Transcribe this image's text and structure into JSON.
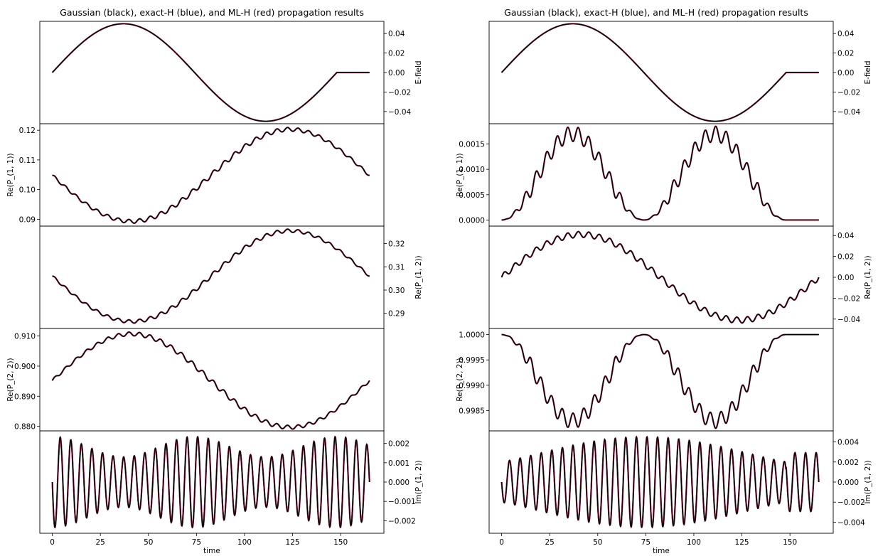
{
  "colors": {
    "gaussian": "#000000",
    "exact": "#1f3fbf",
    "ml": "#d62728",
    "axes": "#000000"
  },
  "chart_data": [
    {
      "type": "line",
      "title": "Gaussian (black), exact-H (blue), and ML-H (red) propagation results",
      "xlabel": "time",
      "xlim": [
        -6.5,
        172.5
      ],
      "xticks": [
        0,
        25,
        50,
        75,
        100,
        125,
        150
      ],
      "panels": [
        {
          "ylabel": "E-field",
          "ylabel_side": "right",
          "ylim": [
            -0.0525,
            0.0525
          ],
          "yticks": [
            0.04,
            0.02,
            0.0,
            -0.02,
            -0.04
          ],
          "tick_labels": [
            "0.04",
            "0.02",
            "0.00",
            "−0.02",
            "−0.04"
          ],
          "kind": "efield",
          "amplitude": 0.05,
          "pulse_end": 148,
          "t_end": 165
        },
        {
          "ylabel": "Re(P_(1, 1))",
          "ylabel_side": "left",
          "ylim": [
            0.0877,
            0.1222
          ],
          "yticks": [
            0.12,
            0.11,
            0.1,
            0.09
          ],
          "tick_labels": [
            "0.12",
            "0.11",
            "0.10",
            "0.09"
          ],
          "kind": "slow",
          "offset": 0.1048,
          "amplitude": -0.0155,
          "ripple": 0.0008,
          "ripple_period": 5.5,
          "t_end": 165
        },
        {
          "ylabel": "Re(P_(1, 2))",
          "ylabel_side": "right",
          "ylim": [
            0.2835,
            0.3275
          ],
          "yticks": [
            0.32,
            0.31,
            0.3,
            0.29
          ],
          "tick_labels": [
            "0.32",
            "0.31",
            "0.30",
            "0.29"
          ],
          "kind": "slow",
          "offset": 0.306,
          "amplitude": -0.0195,
          "ripple": 0.0009,
          "ripple_period": 5.5,
          "t_end": 165
        },
        {
          "ylabel": "Re(P_(2, 2))",
          "ylabel_side": "left",
          "ylim": [
            0.8785,
            0.9125
          ],
          "yticks": [
            0.91,
            0.9,
            0.89,
            0.88
          ],
          "tick_labels": [
            "0.910",
            "0.900",
            "0.890",
            "0.880"
          ],
          "kind": "slow",
          "offset": 0.8952,
          "amplitude": 0.0155,
          "ripple": 0.0008,
          "ripple_period": 5.5,
          "t_end": 165
        },
        {
          "ylabel": "Im(P_(1, 2))",
          "ylabel_side": "right",
          "ylim": [
            -0.00265,
            0.00265
          ],
          "yticks": [
            0.002,
            0.001,
            0.0,
            -0.001,
            -0.002
          ],
          "tick_labels": [
            "0.002",
            "0.001",
            "0.000",
            "−0.001",
            "−0.002"
          ],
          "kind": "osc",
          "envelope": "left",
          "period": 5.5,
          "amp_edge": 0.00235,
          "amp_mid": 0.0013,
          "t_end": 165
        }
      ]
    },
    {
      "type": "line",
      "title": "Gaussian (black), exact-H (blue), and ML-H (red) propagation results",
      "xlabel": "time",
      "xlim": [
        -6.5,
        172.5
      ],
      "xticks": [
        0,
        25,
        50,
        75,
        100,
        125,
        150
      ],
      "panels": [
        {
          "ylabel": "E-field",
          "ylabel_side": "right",
          "ylim": [
            -0.0525,
            0.0525
          ],
          "yticks": [
            0.04,
            0.02,
            0.0,
            -0.02,
            -0.04
          ],
          "tick_labels": [
            "0.04",
            "0.02",
            "0.00",
            "−0.02",
            "−0.04"
          ],
          "kind": "efield",
          "amplitude": 0.05,
          "pulse_end": 148,
          "t_end": 165
        },
        {
          "ylabel": "Re(P_(1, 1))",
          "ylabel_side": "left",
          "ylim": [
            -0.00012,
            0.0019
          ],
          "yticks": [
            0.0015,
            0.001,
            0.0005,
            0.0
          ],
          "tick_labels": [
            "0.0015",
            "0.0010",
            "0.0005",
            "0.0000"
          ],
          "kind": "hump",
          "sign": 1,
          "base": 0.0,
          "peak": 0.0017,
          "ripple": 0.00015,
          "ripple_period": 5.5,
          "t_end": 165
        },
        {
          "ylabel": "Re(P_(1, 2))",
          "ylabel_side": "right",
          "ylim": [
            -0.049,
            0.049
          ],
          "yticks": [
            0.04,
            0.02,
            0.0,
            -0.02,
            -0.04
          ],
          "tick_labels": [
            "0.04",
            "0.02",
            "0.00",
            "−0.02",
            "−0.04"
          ],
          "kind": "slow2",
          "offset": 0.0,
          "amplitude": 0.041,
          "ripple": 0.0028,
          "ripple_period": 5.5,
          "t_end": 165
        },
        {
          "ylabel": "Re(P_(2, 2))",
          "ylabel_side": "left",
          "ylim": [
            0.9981,
            1.00012
          ],
          "yticks": [
            1.0,
            0.9995,
            0.999,
            0.9985
          ],
          "tick_labels": [
            "1.0000",
            "0.9995",
            "0.9990",
            "0.9985"
          ],
          "kind": "hump",
          "sign": -1,
          "base": 1.0,
          "peak": 0.0017,
          "ripple": 0.00015,
          "ripple_period": 5.5,
          "t_end": 165
        },
        {
          "ylabel": "Im(P_(1, 2))",
          "ylabel_side": "right",
          "ylim": [
            -0.0051,
            0.0051
          ],
          "yticks": [
            0.004,
            0.002,
            0.0,
            -0.002,
            -0.004
          ],
          "tick_labels": [
            "0.004",
            "0.002",
            "0.000",
            "−0.002",
            "−0.004"
          ],
          "kind": "osc",
          "envelope": "middle",
          "period": 5.5,
          "amp_edge": 0.0045,
          "amp_mid": 0.0045,
          "t_end": 165
        }
      ]
    }
  ]
}
